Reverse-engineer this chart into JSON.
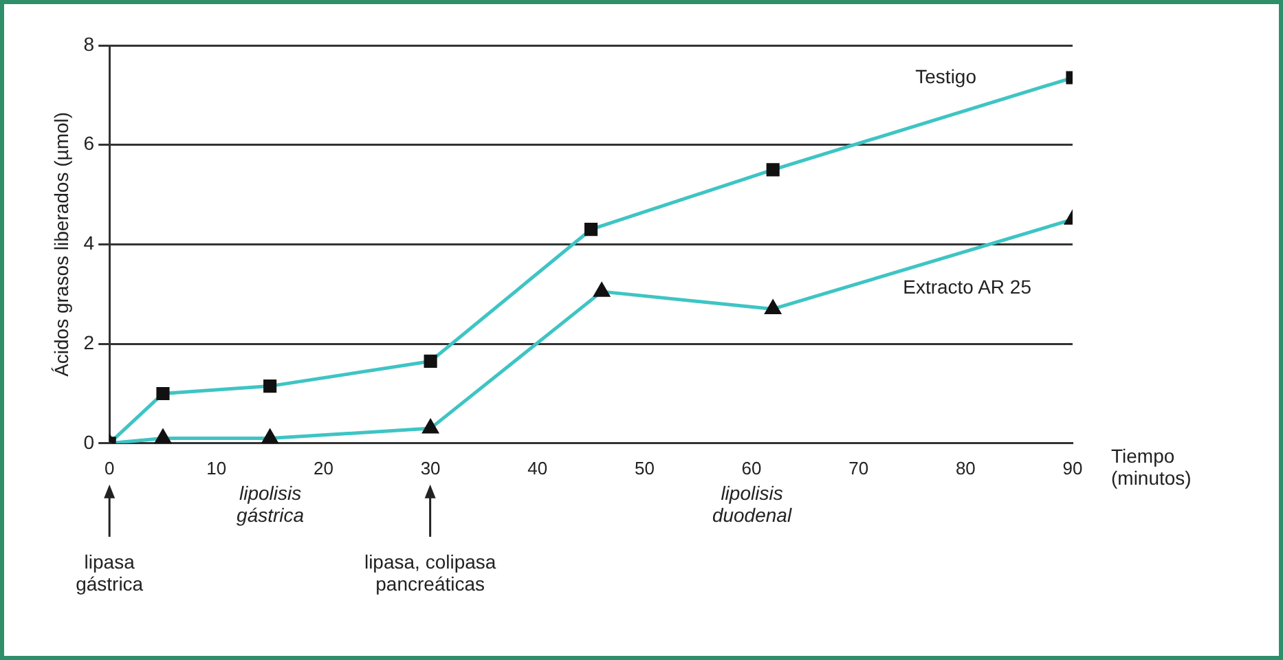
{
  "chart_data": {
    "type": "line",
    "xlabel": "Tiempo (minutos)",
    "ylabel": "Ácidos grasos liberados (µmol)",
    "xlim": [
      0,
      90
    ],
    "xticks": [
      0,
      10,
      20,
      30,
      40,
      50,
      60,
      70,
      80,
      90
    ],
    "ylim": [
      0,
      8
    ],
    "yticks": [
      0,
      2,
      4,
      6,
      8
    ],
    "grid": "y",
    "legend": false,
    "series": [
      {
        "name": "Testigo",
        "color": "#3fc4c4",
        "marker": "square",
        "x": [
          0,
          5,
          15,
          30,
          45,
          62,
          90
        ],
        "values": [
          0,
          1.0,
          1.15,
          1.65,
          4.3,
          5.5,
          7.35
        ]
      },
      {
        "name": "Extracto AR 25",
        "color": "#3fc4c4",
        "marker": "triangle",
        "x": [
          0,
          5,
          15,
          30,
          46,
          62,
          90
        ],
        "values": [
          0,
          0.1,
          0.1,
          0.3,
          3.05,
          2.7,
          4.5
        ]
      }
    ],
    "annotations": [
      "lipasa gástrica",
      "lipolisis gástrica",
      "lipasa, colipasa pancreáticas",
      "lipolisis duodenal"
    ]
  }
}
